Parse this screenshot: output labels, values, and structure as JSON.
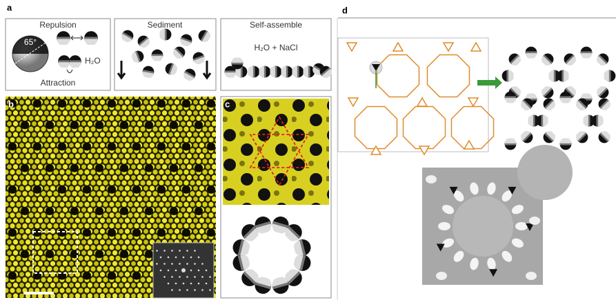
{
  "panels": {
    "a": {
      "label": "a",
      "boxes": [
        {
          "title": "Repulsion",
          "angle": "65°",
          "solvent": "H₂O",
          "caption": "Attraction"
        },
        {
          "title": "Sediment"
        },
        {
          "title": "Self-assemble",
          "solvent": "H₂O + NaCl"
        }
      ]
    },
    "b": {
      "label": "b"
    },
    "c": {
      "label": "c"
    },
    "d": {
      "label": "d"
    }
  }
}
